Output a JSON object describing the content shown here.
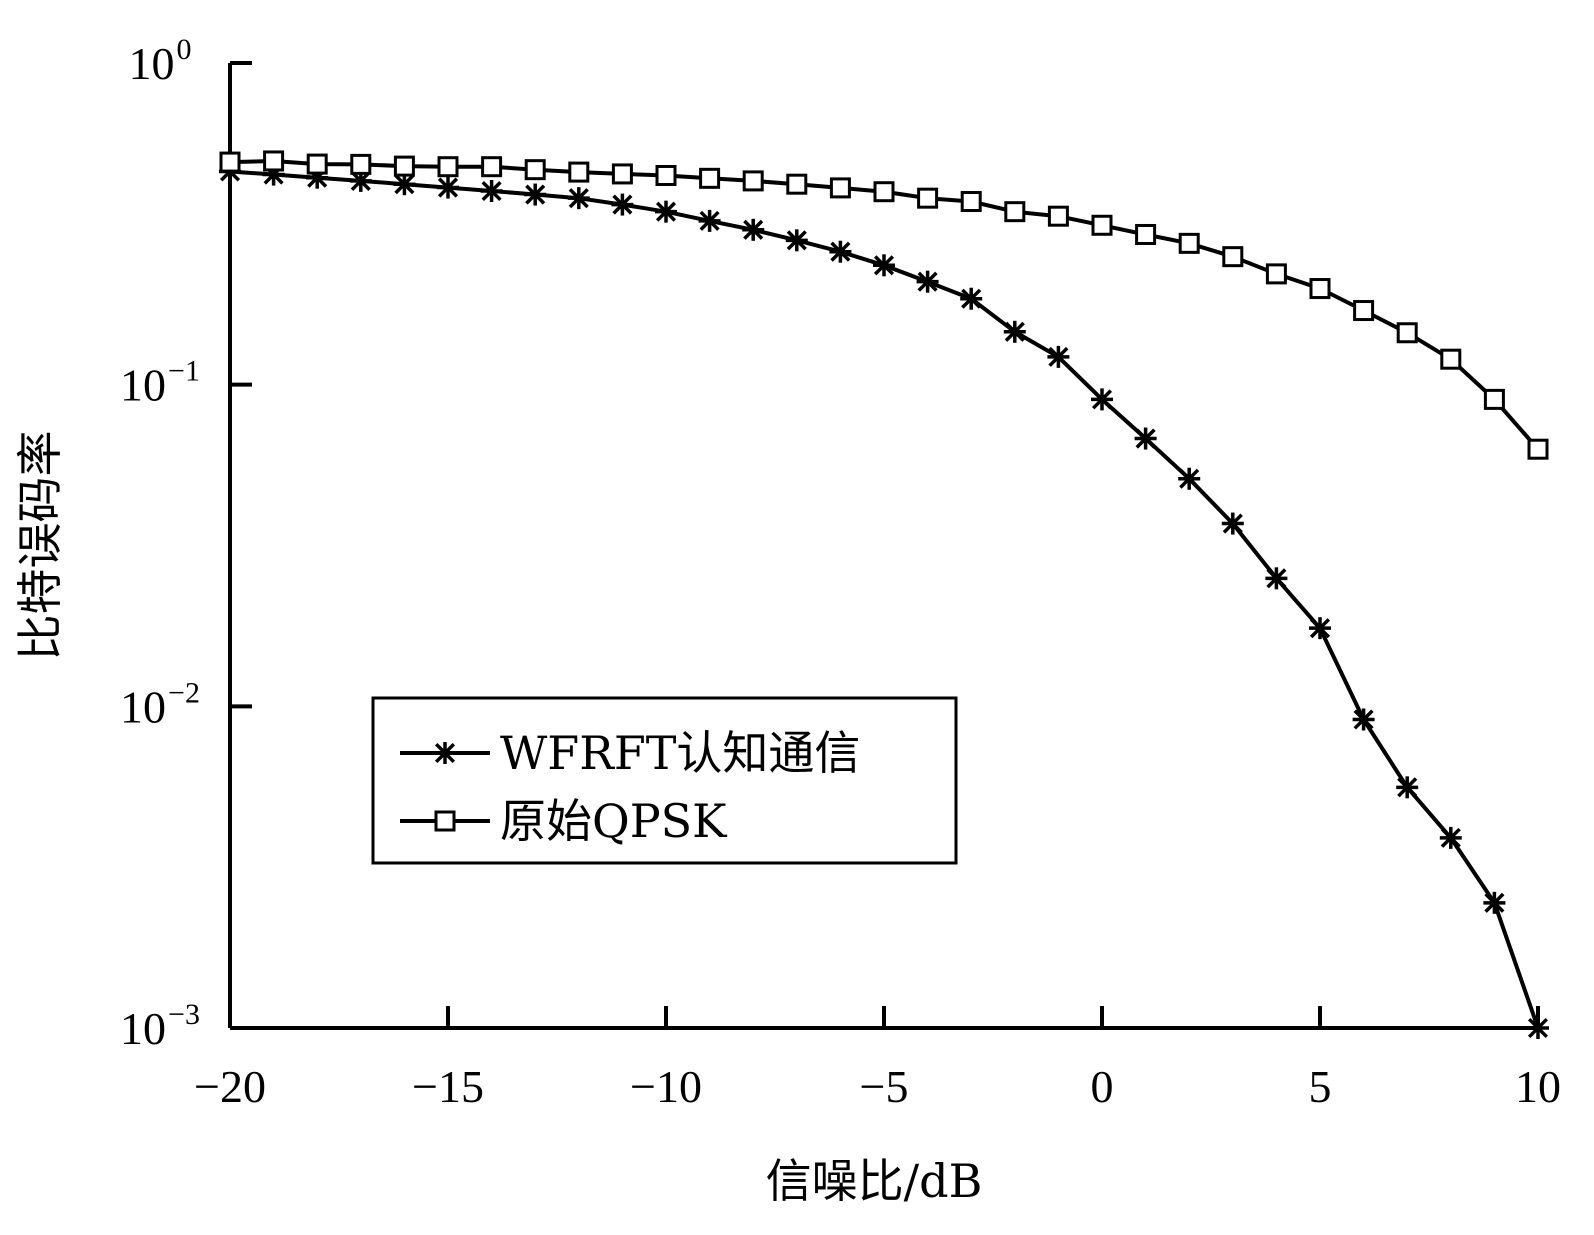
{
  "chart_data": {
    "type": "line",
    "title": "",
    "xlabel": "信噪比/dB",
    "ylabel": "比特误码率",
    "xlim": [
      -20,
      10
    ],
    "ylim": [
      0.001,
      1
    ],
    "yscale": "log",
    "grid": false,
    "legend_position": "lower-left",
    "x_ticks": [
      -20,
      -15,
      -10,
      -5,
      0,
      5,
      10
    ],
    "x_tick_labels": [
      "−20",
      "−15",
      "−10",
      "−5",
      "0",
      "5",
      "10"
    ],
    "y_ticks": [
      {
        "base": "10",
        "exp": "0",
        "value": 1
      },
      {
        "base": "10",
        "exp": "−1",
        "value": 0.1
      },
      {
        "base": "10",
        "exp": "−2",
        "value": 0.01
      },
      {
        "base": "10",
        "exp": "−3",
        "value": 0.001
      }
    ],
    "x": [
      -20,
      -19,
      -18,
      -17,
      -16,
      -15,
      -14,
      -13,
      -12,
      -11,
      -10,
      -9,
      -8,
      -7,
      -6,
      -5,
      -4,
      -3,
      -2,
      -1,
      0,
      1,
      2,
      3,
      4,
      5,
      6,
      7,
      8,
      9,
      10
    ],
    "series": [
      {
        "name": "WFRFT认知通信",
        "marker": "asterisk",
        "values": [
          0.46,
          0.45,
          0.44,
          0.43,
          0.42,
          0.41,
          0.4,
          0.39,
          0.38,
          0.363,
          0.345,
          0.323,
          0.303,
          0.281,
          0.259,
          0.235,
          0.209,
          0.185,
          0.146,
          0.122,
          0.09,
          0.068,
          0.051,
          0.037,
          0.025,
          0.0175,
          0.0091,
          0.0056,
          0.0039,
          0.00245,
          0.001
        ]
      },
      {
        "name": "原始QPSK",
        "marker": "square",
        "values": [
          0.492,
          0.496,
          0.485,
          0.484,
          0.478,
          0.476,
          0.476,
          0.466,
          0.458,
          0.452,
          0.447,
          0.438,
          0.43,
          0.42,
          0.409,
          0.398,
          0.38,
          0.371,
          0.345,
          0.334,
          0.313,
          0.293,
          0.275,
          0.25,
          0.221,
          0.199,
          0.17,
          0.145,
          0.12,
          0.09,
          0.063
        ]
      }
    ]
  }
}
